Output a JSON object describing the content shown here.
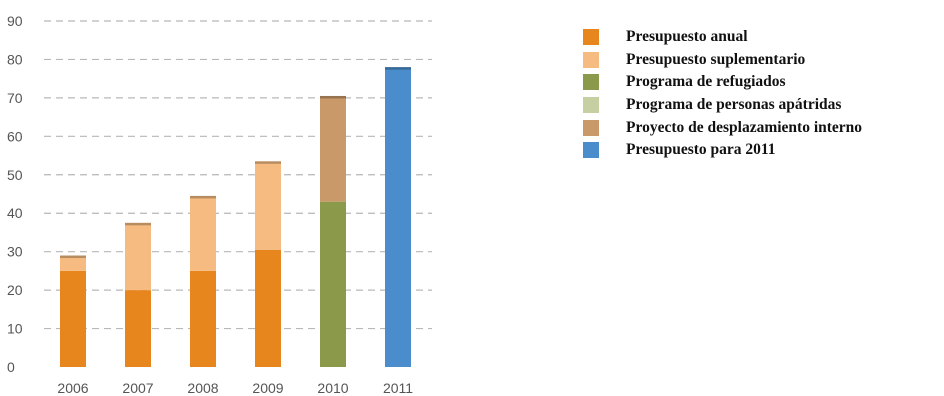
{
  "chart_data": {
    "type": "bar",
    "stacked": true,
    "title": "",
    "xlabel": "",
    "ylabel": "",
    "categories": [
      "2006",
      "2007",
      "2008",
      "2009",
      "2010",
      "2011"
    ],
    "ylim": [
      0,
      90
    ],
    "yticks": [
      0,
      10,
      20,
      30,
      40,
      50,
      60,
      70,
      80,
      90
    ],
    "grid": "horizontal-dashed",
    "legend_position": "right",
    "series": [
      {
        "name": "Presupuesto anual",
        "color": "#e8861e",
        "values": [
          25,
          20,
          25,
          30.5,
          0,
          0
        ]
      },
      {
        "name": "Presupuesto suplementario",
        "color": "#f5bb80",
        "values": [
          4,
          17.5,
          19.5,
          23,
          0,
          0
        ]
      },
      {
        "name": "Programa de refugiados",
        "color": "#8a9a4a",
        "values": [
          0,
          0,
          0,
          0,
          43,
          0
        ]
      },
      {
        "name": "Programa de personas apátridas",
        "color": "#c6cfa2",
        "values": [
          0,
          0,
          0,
          0,
          0,
          0
        ]
      },
      {
        "name": "Proyecto de desplazamiento interno",
        "color": "#c9996a",
        "values": [
          0,
          0,
          0,
          0,
          27.5,
          0
        ]
      },
      {
        "name": "Presupuesto para 2011",
        "color": "#4a8ccc",
        "values": [
          0,
          0,
          0,
          0,
          0,
          78
        ]
      }
    ]
  }
}
